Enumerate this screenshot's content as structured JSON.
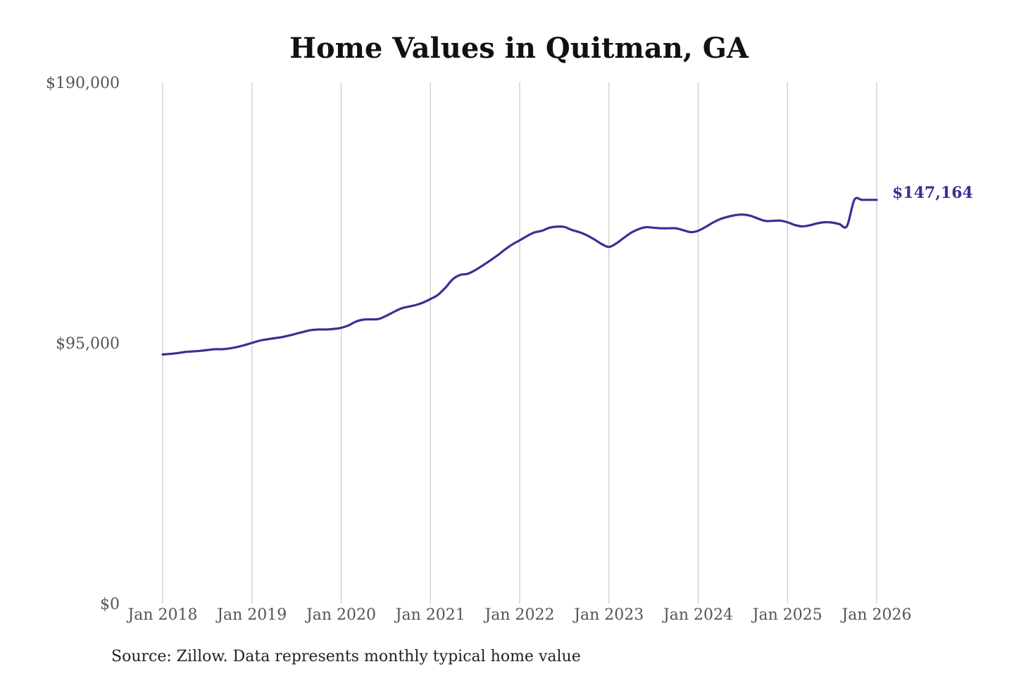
{
  "colors": {
    "line": "#3a2f97",
    "grid": "#c8c8c8",
    "background": "#ffffff"
  },
  "source": "Source: Zillow. Data represents monthly typical home value",
  "chart_data": {
    "type": "line",
    "title": "Home Values in Quitman, GA",
    "xlabel": "",
    "ylabel": "",
    "x_ticks": [
      "Jan 2018",
      "Jan 2019",
      "Jan 2020",
      "Jan 2021",
      "Jan 2022",
      "Jan 2023",
      "Jan 2024",
      "Jan 2025",
      "Jan 2026"
    ],
    "y_ticks": [
      "$0",
      "$95,000",
      "$190,000"
    ],
    "y_tick_values": [
      0,
      95000,
      190000
    ],
    "ylim": [
      0,
      190000
    ],
    "xlim": [
      "2018-01",
      "2026-01"
    ],
    "grid": "vertical",
    "end_label": "$147,164",
    "series": [
      {
        "x": [
          "2018-01",
          "2018-02",
          "2018-03",
          "2018-04",
          "2018-05",
          "2018-06",
          "2018-07",
          "2018-08",
          "2018-09",
          "2018-10",
          "2018-11",
          "2018-12",
          "2019-01",
          "2019-02",
          "2019-03",
          "2019-04",
          "2019-05",
          "2019-06",
          "2019-07",
          "2019-08",
          "2019-09",
          "2019-10",
          "2019-11",
          "2019-12",
          "2020-01",
          "2020-02",
          "2020-03",
          "2020-04",
          "2020-05",
          "2020-06",
          "2020-07",
          "2020-08",
          "2020-09",
          "2020-10",
          "2020-11",
          "2020-12",
          "2021-01",
          "2021-02",
          "2021-03",
          "2021-04",
          "2021-05",
          "2021-06",
          "2021-07",
          "2021-08",
          "2021-09",
          "2021-10",
          "2021-11",
          "2021-12",
          "2022-01",
          "2022-02",
          "2022-03",
          "2022-04",
          "2022-05",
          "2022-06",
          "2022-07",
          "2022-08",
          "2022-09",
          "2022-10",
          "2022-11",
          "2022-12",
          "2023-01",
          "2023-02",
          "2023-03",
          "2023-04",
          "2023-05",
          "2023-06",
          "2023-07",
          "2023-08",
          "2023-09",
          "2023-10",
          "2023-11",
          "2023-12",
          "2024-01",
          "2024-02",
          "2024-03",
          "2024-04",
          "2024-05",
          "2024-06",
          "2024-07",
          "2024-08",
          "2024-09",
          "2024-10",
          "2024-11",
          "2024-12",
          "2025-01",
          "2025-02",
          "2025-03",
          "2025-04",
          "2025-05",
          "2025-06",
          "2025-07",
          "2025-08",
          "2025-09",
          "2025-10",
          "2025-11",
          "2025-12",
          "2026-01"
        ],
        "values": [
          90800,
          91000,
          91300,
          91700,
          91900,
          92100,
          92400,
          92700,
          92700,
          93000,
          93500,
          94200,
          95000,
          95800,
          96300,
          96700,
          97100,
          97700,
          98400,
          99100,
          99700,
          99900,
          99900,
          100100,
          100500,
          101400,
          102800,
          103500,
          103600,
          103700,
          104800,
          106200,
          107500,
          108200,
          108800,
          109700,
          111000,
          112500,
          115100,
          118200,
          119800,
          120200,
          121500,
          123200,
          125000,
          126900,
          129000,
          130900,
          132400,
          134000,
          135300,
          135900,
          137000,
          137400,
          137300,
          136200,
          135400,
          134300,
          132800,
          131100,
          130000,
          131300,
          133300,
          135200,
          136500,
          137200,
          137000,
          136800,
          136800,
          136800,
          136100,
          135400,
          135900,
          137300,
          138900,
          140200,
          141000,
          141600,
          141800,
          141400,
          140400,
          139500,
          139500,
          139600,
          139000,
          138000,
          137500,
          137900,
          138600,
          139000,
          138900,
          138300,
          137600,
          147164,
          147164,
          147164,
          147164
        ],
        "name": ""
      }
    ]
  }
}
